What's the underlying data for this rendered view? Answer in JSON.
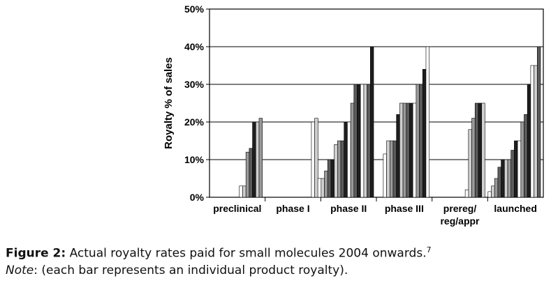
{
  "chart_data": {
    "type": "bar",
    "ylabel": "Royalty % of sales",
    "ylim": [
      0,
      50
    ],
    "yticks": [
      0,
      10,
      20,
      30,
      40,
      50
    ],
    "ytick_labels": [
      "0%",
      "10%",
      "20%",
      "30%",
      "40%",
      "50%"
    ],
    "grid": "horizontal",
    "groups": [
      {
        "label": "preclinical",
        "values": [
          3,
          3,
          12,
          13,
          20,
          20,
          21
        ]
      },
      {
        "label": "phase I",
        "values": [
          20,
          21
        ]
      },
      {
        "label": "phase II",
        "values": [
          5,
          5,
          7,
          10,
          10,
          14,
          15,
          15,
          20,
          20,
          25,
          30,
          30,
          30,
          30,
          30,
          40
        ]
      },
      {
        "label": "phase III",
        "values": [
          11.5,
          15,
          15,
          15,
          22,
          25,
          25,
          25,
          25,
          25,
          30,
          30,
          34,
          40
        ]
      },
      {
        "label": "prereg/\nreg/appr",
        "values": [
          2,
          18,
          21,
          25,
          25,
          25
        ]
      },
      {
        "label": "launched",
        "values": [
          1.5,
          3,
          5,
          8,
          10,
          10,
          10,
          12.5,
          15,
          15,
          20,
          22,
          30,
          35,
          35,
          40
        ]
      }
    ]
  },
  "caption": {
    "figure_label": "Figure 2:",
    "text": " Actual royalty rates paid for small molecules 2004 onwards.",
    "superscript": "7",
    "note_label": "Note",
    "note_text": ": (each bar represents an individual product royalty)."
  }
}
